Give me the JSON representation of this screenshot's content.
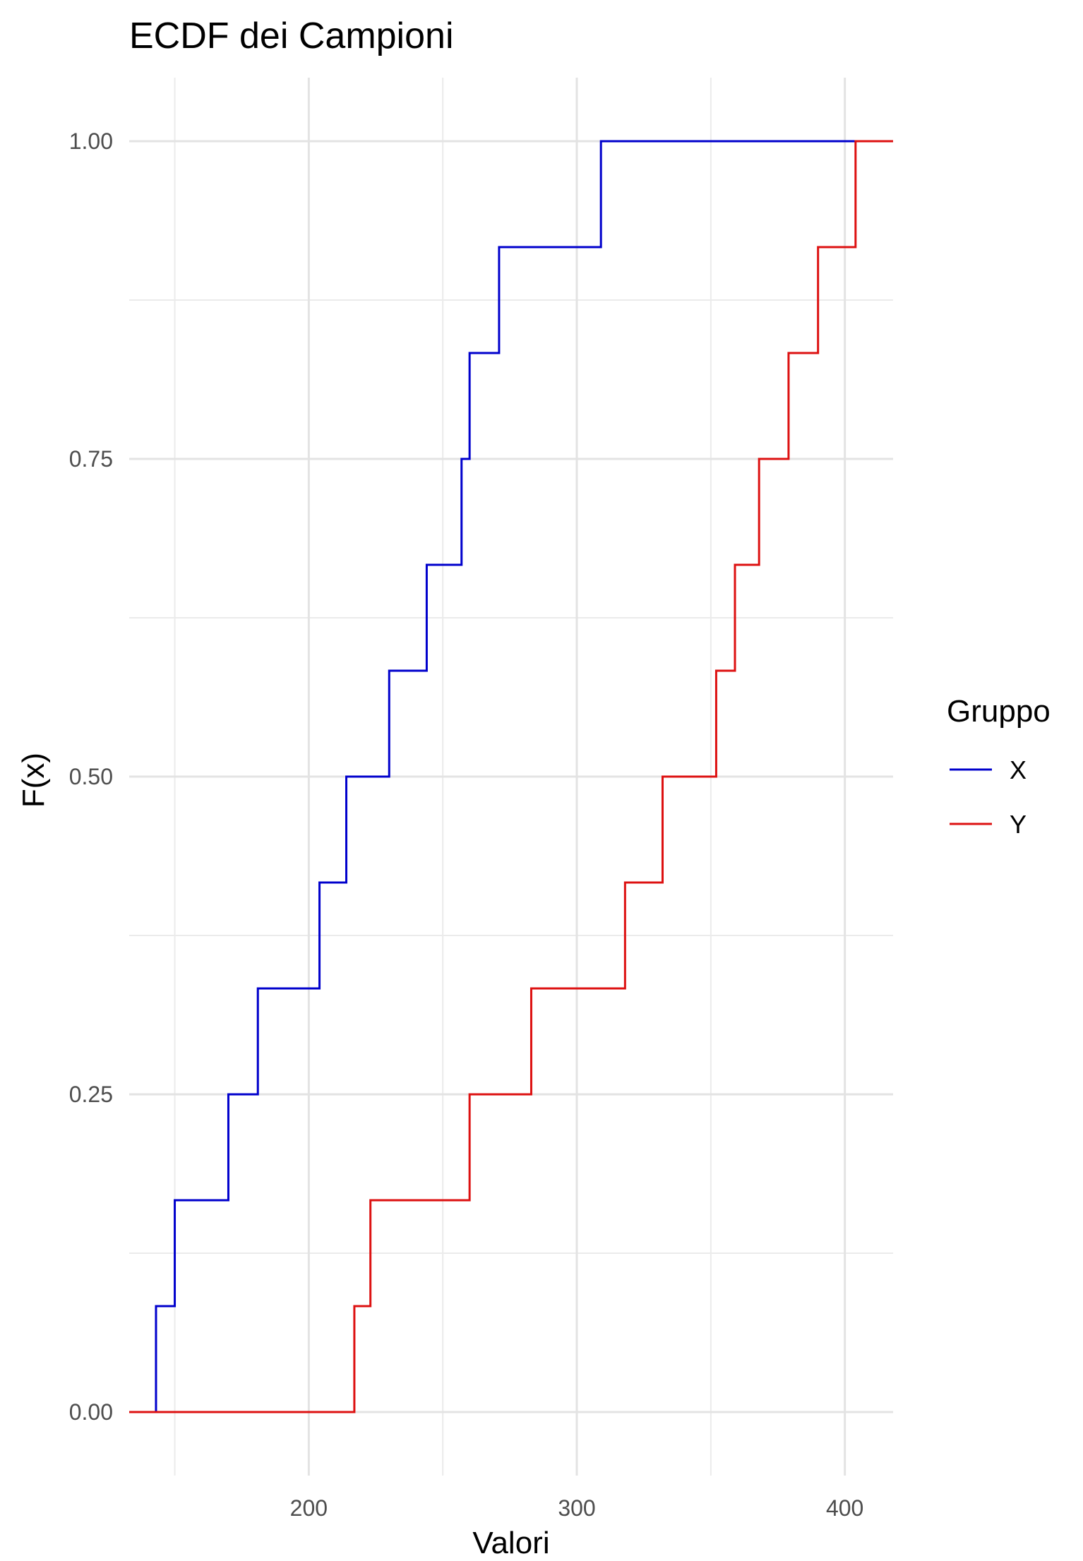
{
  "chart_data": {
    "type": "line",
    "step": true,
    "title": "ECDF dei Campioni",
    "xlabel": "Valori",
    "ylabel": "F(x)",
    "xlim": [
      133,
      418
    ],
    "ylim": [
      -0.05,
      1.05
    ],
    "x_ticks": [
      200,
      300,
      400
    ],
    "y_ticks": [
      0,
      0.25,
      0.5,
      0.75,
      1.0
    ],
    "y_tick_labels": [
      "0.00",
      "0.25",
      "0.50",
      "0.75",
      "1.00"
    ],
    "grid": true,
    "legend": {
      "title": "Gruppo",
      "position": "right"
    },
    "series": [
      {
        "name": "X",
        "color": "#0000cc",
        "values": [
          143,
          150,
          170,
          181,
          204,
          214,
          230,
          244,
          257,
          260,
          271,
          309
        ]
      },
      {
        "name": "Y",
        "color": "#dd1111",
        "values": [
          217,
          223,
          260,
          283,
          318,
          332,
          352,
          359,
          368,
          379,
          390,
          404
        ]
      }
    ]
  }
}
